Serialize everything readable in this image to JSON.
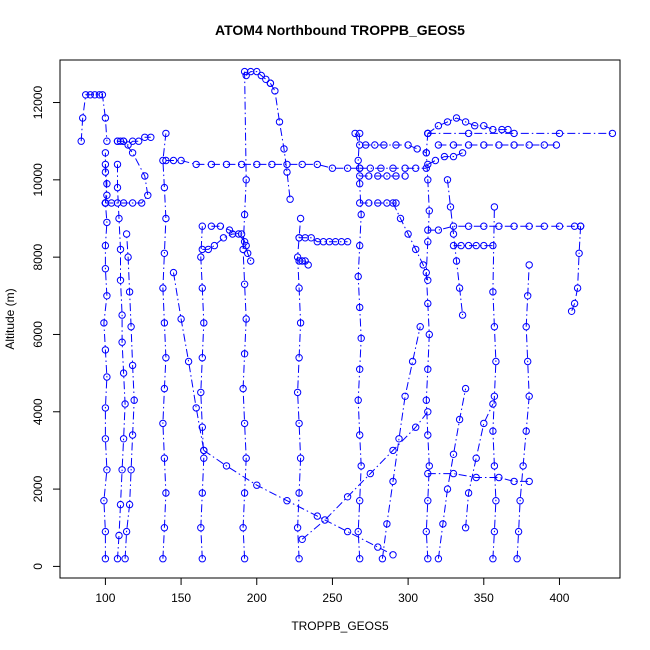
{
  "chart_data": {
    "type": "scatter",
    "title": "ATOM4 Northbound TROPPB_GEOS5",
    "xlabel": "TROPPB_GEOS5",
    "ylabel": "Altitude (m)",
    "xlim": [
      70,
      440
    ],
    "ylim": [
      -300,
      13100
    ],
    "x_ticks": [
      100,
      150,
      200,
      250,
      300,
      350,
      400
    ],
    "y_ticks": [
      0,
      2000,
      4000,
      6000,
      8000,
      10000,
      12000
    ],
    "marker": "open-circle",
    "line_style": "dash-dot",
    "grid": false,
    "legend": "none",
    "colors": {
      "series": "#0000ff",
      "axes": "#000000"
    },
    "series": [
      {
        "x": [
          100,
          100,
          99,
          101,
          100,
          100,
          101,
          100,
          99,
          101,
          100,
          100,
          101,
          100,
          100,
          101,
          100,
          100,
          100,
          101,
          100,
          100
        ],
        "y": [
          200,
          900,
          1700,
          2500,
          3300,
          4100,
          4900,
          5600,
          6300,
          7000,
          7700,
          8300,
          8900,
          9400,
          9400,
          9900,
          10400,
          10700,
          10200,
          9600,
          9400,
          9400
        ]
      },
      {
        "x": [
          84,
          85,
          87,
          90,
          93,
          96,
          98,
          100,
          101
        ],
        "y": [
          11000,
          11600,
          12200,
          12200,
          12200,
          12200,
          12200,
          11600,
          11000
        ]
      },
      {
        "x": [
          100,
          104,
          108,
          112,
          118,
          124,
          128,
          126,
          118,
          112,
          108
        ],
        "y": [
          9400,
          9400,
          9400,
          9400,
          9400,
          9400,
          9600,
          10100,
          10700,
          11000,
          11000
        ]
      },
      {
        "x": [
          108,
          110,
          112,
          115,
          118,
          122,
          126,
          130
        ],
        "y": [
          11000,
          11000,
          11000,
          10900,
          11000,
          11000,
          11100,
          11100
        ]
      },
      {
        "x": [
          108,
          108,
          109,
          110,
          110,
          111,
          111,
          112,
          113,
          112,
          111,
          110,
          109,
          108
        ],
        "y": [
          10400,
          9800,
          9000,
          8200,
          7400,
          6500,
          5800,
          5000,
          4200,
          3300,
          2500,
          1600,
          800,
          200
        ]
      },
      {
        "x": [
          113,
          114,
          116,
          117,
          118,
          119,
          118,
          117,
          116,
          115,
          114
        ],
        "y": [
          200,
          900,
          1600,
          2500,
          3400,
          4300,
          5200,
          6200,
          7100,
          8000,
          8600
        ]
      },
      {
        "x": [
          138,
          139,
          140,
          139,
          138,
          139,
          140,
          139,
          138,
          139,
          140,
          139,
          138,
          140
        ],
        "y": [
          200,
          1000,
          1900,
          2800,
          3700,
          4600,
          5400,
          6300,
          7200,
          8100,
          9000,
          9800,
          10500,
          11200
        ]
      },
      {
        "x": [
          140,
          145,
          150,
          160,
          170,
          180,
          190,
          200,
          210,
          220,
          230,
          240,
          250,
          260,
          268
        ],
        "y": [
          10500,
          10500,
          10500,
          10400,
          10400,
          10400,
          10400,
          10400,
          10400,
          10400,
          10400,
          10400,
          10300,
          10300,
          10300
        ]
      },
      {
        "x": [
          164,
          163,
          164,
          165,
          164,
          163,
          164,
          165,
          164,
          163,
          164
        ],
        "y": [
          200,
          1000,
          1900,
          2800,
          3600,
          4500,
          5400,
          6300,
          7200,
          8000,
          8800
        ]
      },
      {
        "x": [
          164,
          168,
          172,
          178,
          184,
          190,
          193
        ],
        "y": [
          8200,
          8200,
          8300,
          8500,
          8600,
          8600,
          8300
        ]
      },
      {
        "x": [
          170,
          176,
          182,
          188,
          192,
          194,
          196
        ],
        "y": [
          8800,
          8800,
          8700,
          8600,
          8400,
          8100,
          7900
        ]
      },
      {
        "x": [
          192,
          191,
          192,
          193,
          192,
          191,
          192,
          193,
          192,
          191,
          192,
          193,
          192
        ],
        "y": [
          200,
          1000,
          1900,
          2800,
          3700,
          4600,
          5500,
          6400,
          7300,
          8200,
          9100,
          10000,
          12800
        ]
      },
      {
        "x": [
          193,
          196,
          200,
          203,
          206,
          209
        ],
        "y": [
          12700,
          12800,
          12800,
          12700,
          12600,
          12500
        ]
      },
      {
        "x": [
          209,
          212,
          215,
          218,
          220,
          222
        ],
        "y": [
          12500,
          12300,
          11500,
          10800,
          10200,
          9500
        ]
      },
      {
        "x": [
          228,
          227,
          228,
          229,
          228,
          227,
          228,
          229,
          228,
          227,
          228,
          229
        ],
        "y": [
          200,
          1000,
          1900,
          2800,
          3700,
          4500,
          5400,
          6300,
          7200,
          8000,
          8500,
          9000
        ]
      },
      {
        "x": [
          228,
          232,
          236,
          240,
          244,
          248,
          252,
          256,
          260
        ],
        "y": [
          8500,
          8500,
          8500,
          8400,
          8400,
          8400,
          8400,
          8400,
          8400
        ]
      },
      {
        "x": [
          228,
          230,
          232,
          234
        ],
        "y": [
          7900,
          7900,
          7900,
          7800
        ]
      },
      {
        "x": [
          268,
          267,
          268,
          269,
          268,
          267,
          268,
          269,
          268,
          267,
          268,
          269,
          268,
          267,
          268
        ],
        "y": [
          200,
          900,
          1700,
          2600,
          3400,
          4300,
          5100,
          5900,
          6700,
          7500,
          8300,
          9100,
          9900,
          10500,
          11200
        ]
      },
      {
        "x": [
          265,
          268,
          272,
          278,
          284,
          292,
          300,
          306,
          312
        ],
        "y": [
          11200,
          10900,
          10900,
          10900,
          10900,
          10900,
          10900,
          10800,
          10700
        ]
      },
      {
        "x": [
          268,
          275,
          282,
          290,
          298,
          305,
          312
        ],
        "y": [
          10300,
          10300,
          10300,
          10300,
          10300,
          10300,
          10300
        ]
      },
      {
        "x": [
          268,
          274,
          280,
          286,
          292,
          298
        ],
        "y": [
          10100,
          10100,
          10100,
          10100,
          10100,
          10100
        ]
      },
      {
        "x": [
          268,
          274,
          280,
          286,
          292
        ],
        "y": [
          9400,
          9400,
          9400,
          9400,
          9400
        ]
      },
      {
        "x": [
          313,
          312,
          313,
          314,
          313,
          312,
          313,
          314,
          313,
          312,
          313,
          314,
          313,
          312,
          313
        ],
        "y": [
          200,
          900,
          1700,
          2600,
          3400,
          4300,
          5100,
          6000,
          6800,
          7600,
          8400,
          9200,
          10000,
          10700,
          11200
        ]
      },
      {
        "x": [
          313,
          320,
          326,
          332,
          338,
          344,
          350,
          356,
          362,
          366
        ],
        "y": [
          11200,
          11400,
          11500,
          11600,
          11500,
          11400,
          11400,
          11300,
          11300,
          11300
        ]
      },
      {
        "x": [
          313,
          340,
          370,
          400,
          435
        ],
        "y": [
          11200,
          11200,
          11200,
          11200,
          11200
        ]
      },
      {
        "x": [
          320,
          330,
          340,
          350,
          360,
          370,
          380,
          390,
          398
        ],
        "y": [
          10900,
          10900,
          10900,
          10900,
          10900,
          10900,
          10900,
          10900,
          10900
        ]
      },
      {
        "x": [
          313,
          318,
          324,
          330,
          336
        ],
        "y": [
          10400,
          10500,
          10600,
          10600,
          10700
        ]
      },
      {
        "x": [
          313,
          320,
          330,
          340,
          350,
          360,
          370,
          380,
          390,
          400,
          410,
          414
        ],
        "y": [
          8700,
          8700,
          8800,
          8800,
          8800,
          8800,
          8800,
          8800,
          8800,
          8800,
          8800,
          8800
        ]
      },
      {
        "x": [
          414,
          413,
          412,
          410,
          408
        ],
        "y": [
          8800,
          8100,
          7200,
          6800,
          6600
        ]
      },
      {
        "x": [
          356,
          357,
          358,
          357,
          356,
          357,
          358,
          357,
          356,
          357
        ],
        "y": [
          200,
          900,
          1700,
          2600,
          3500,
          4400,
          5300,
          6200,
          7100,
          9300
        ]
      },
      {
        "x": [
          372,
          373,
          374,
          376,
          378,
          380,
          379,
          378,
          379,
          380
        ],
        "y": [
          200,
          900,
          1700,
          2600,
          3500,
          4400,
          5300,
          6200,
          7000,
          7800
        ]
      },
      {
        "x": [
          338,
          340,
          345,
          350,
          356
        ],
        "y": [
          1000,
          1900,
          2800,
          3700,
          4200
        ]
      },
      {
        "x": [
          290,
          295,
          300,
          305,
          310,
          313
        ],
        "y": [
          9400,
          9000,
          8600,
          8200,
          7800,
          7400
        ]
      },
      {
        "x": [
          330,
          335,
          340,
          345,
          350,
          356
        ],
        "y": [
          8300,
          8300,
          8300,
          8300,
          8300,
          8300
        ]
      },
      {
        "x": [
          326,
          328,
          330,
          332,
          334,
          336
        ],
        "y": [
          10000,
          9300,
          8600,
          7900,
          7200,
          6500
        ]
      },
      {
        "x": [
          165,
          180,
          200,
          220,
          240,
          260,
          280,
          290
        ],
        "y": [
          3000,
          2600,
          2100,
          1700,
          1300,
          900,
          500,
          300
        ]
      },
      {
        "x": [
          230,
          245,
          260,
          275,
          290,
          305,
          313
        ],
        "y": [
          700,
          1200,
          1800,
          2400,
          3000,
          3600,
          4000
        ]
      },
      {
        "x": [
          145,
          150,
          155,
          160,
          165
        ],
        "y": [
          7600,
          6400,
          5300,
          4100,
          3000
        ]
      },
      {
        "x": [
          283,
          286,
          290,
          294,
          298,
          303,
          308
        ],
        "y": [
          200,
          1100,
          2200,
          3300,
          4400,
          5300,
          6200
        ]
      },
      {
        "x": [
          320,
          323,
          326,
          330,
          334,
          338
        ],
        "y": [
          200,
          1100,
          2000,
          2900,
          3800,
          4600
        ]
      },
      {
        "x": [
          313,
          330,
          345,
          360,
          370,
          380
        ],
        "y": [
          2400,
          2400,
          2300,
          2300,
          2200,
          2200
        ]
      }
    ]
  }
}
